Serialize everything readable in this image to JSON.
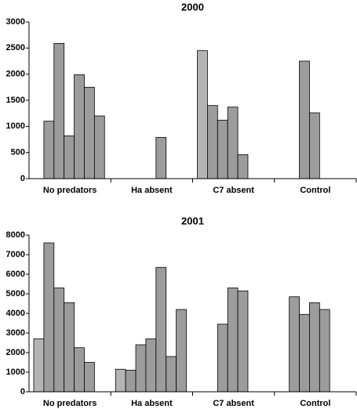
{
  "chart_data": [
    {
      "type": "bar",
      "title": "2000",
      "categories": [
        "No predators",
        "Ha absent",
        "C7 absent",
        "Control"
      ],
      "series": [
        {
          "color": "#b4b4b4",
          "values": [
            null,
            null,
            2450,
            null
          ]
        },
        {
          "color": "#9c9c9c",
          "values": [
            1100,
            null,
            1400,
            null
          ]
        },
        {
          "color": "#9c9c9c",
          "values": [
            2590,
            null,
            1120,
            2250
          ]
        },
        {
          "color": "#9c9c9c",
          "values": [
            820,
            null,
            1370,
            1260
          ]
        },
        {
          "color": "#9c9c9c",
          "values": [
            1990,
            790,
            460,
            null
          ]
        },
        {
          "color": "#9c9c9c",
          "values": [
            1750,
            null,
            null,
            null
          ]
        },
        {
          "color": "#9c9c9c",
          "values": [
            1200,
            null,
            null,
            null
          ]
        }
      ],
      "ylim": [
        0,
        3000
      ],
      "yticks": [
        0,
        500,
        1000,
        1500,
        2000,
        2500,
        3000
      ]
    },
    {
      "type": "bar",
      "title": "2001",
      "categories": [
        "No predators",
        "Ha absent",
        "C7 absent",
        "Control"
      ],
      "series": [
        {
          "color": "#b4b4b4",
          "values": [
            2700,
            1150,
            null,
            null
          ]
        },
        {
          "color": "#9c9c9c",
          "values": [
            7600,
            1100,
            null,
            4850
          ]
        },
        {
          "color": "#9c9c9c",
          "values": [
            5300,
            2400,
            3450,
            3950
          ]
        },
        {
          "color": "#9c9c9c",
          "values": [
            4550,
            2700,
            5300,
            4550
          ]
        },
        {
          "color": "#9c9c9c",
          "values": [
            2250,
            6350,
            5150,
            4200
          ]
        },
        {
          "color": "#9c9c9c",
          "values": [
            1500,
            1800,
            null,
            null
          ]
        },
        {
          "color": "#9c9c9c",
          "values": [
            null,
            4200,
            null,
            null
          ]
        }
      ],
      "ylim": [
        0,
        8000
      ],
      "yticks": [
        0,
        1000,
        2000,
        3000,
        4000,
        5000,
        6000,
        7000,
        8000
      ]
    }
  ]
}
